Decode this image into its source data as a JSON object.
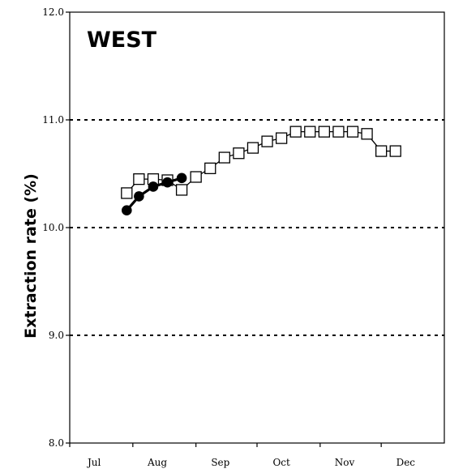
{
  "chart_data": {
    "type": "line",
    "title": "WEST",
    "xlabel": "",
    "ylabel": "Extraction rate (%)",
    "x_ticks": [
      "Jul",
      "Aug",
      "Sep",
      "Oct",
      "Nov",
      "Dec"
    ],
    "y_ticks": [
      "8.0",
      "9.0",
      "10.0",
      "11.0",
      "12.0"
    ],
    "ylim": [
      8.0,
      12.0
    ],
    "xlim": [
      "Jul 1",
      "Dec 31"
    ],
    "grid": "dashed horizontal at 9.0, 10.0, 11.0",
    "series": [
      {
        "marker": "open-square",
        "color": "#000000",
        "points": [
          {
            "x": "Jul 29",
            "y": 10.32
          },
          {
            "x": "Aug 4",
            "y": 10.45
          },
          {
            "x": "Aug 11",
            "y": 10.45
          },
          {
            "x": "Aug 18",
            "y": 10.44
          },
          {
            "x": "Aug 25",
            "y": 10.35
          },
          {
            "x": "Sep 1",
            "y": 10.47
          },
          {
            "x": "Sep 8",
            "y": 10.55
          },
          {
            "x": "Sep 15",
            "y": 10.65
          },
          {
            "x": "Sep 22",
            "y": 10.69
          },
          {
            "x": "Sep 29",
            "y": 10.74
          },
          {
            "x": "Oct 6",
            "y": 10.8
          },
          {
            "x": "Oct 13",
            "y": 10.83
          },
          {
            "x": "Oct 20",
            "y": 10.89
          },
          {
            "x": "Oct 27",
            "y": 10.89
          },
          {
            "x": "Nov 3",
            "y": 10.89
          },
          {
            "x": "Nov 10",
            "y": 10.89
          },
          {
            "x": "Nov 17",
            "y": 10.89
          },
          {
            "x": "Nov 24",
            "y": 10.87
          },
          {
            "x": "Dec 1",
            "y": 10.71
          },
          {
            "x": "Dec 8",
            "y": 10.71
          }
        ]
      },
      {
        "marker": "filled-circle",
        "color": "#000000",
        "points": [
          {
            "x": "Jul 29",
            "y": 10.16
          },
          {
            "x": "Aug 4",
            "y": 10.29
          },
          {
            "x": "Aug 11",
            "y": 10.38
          },
          {
            "x": "Aug 18",
            "y": 10.42
          },
          {
            "x": "Aug 25",
            "y": 10.46
          }
        ]
      }
    ]
  }
}
